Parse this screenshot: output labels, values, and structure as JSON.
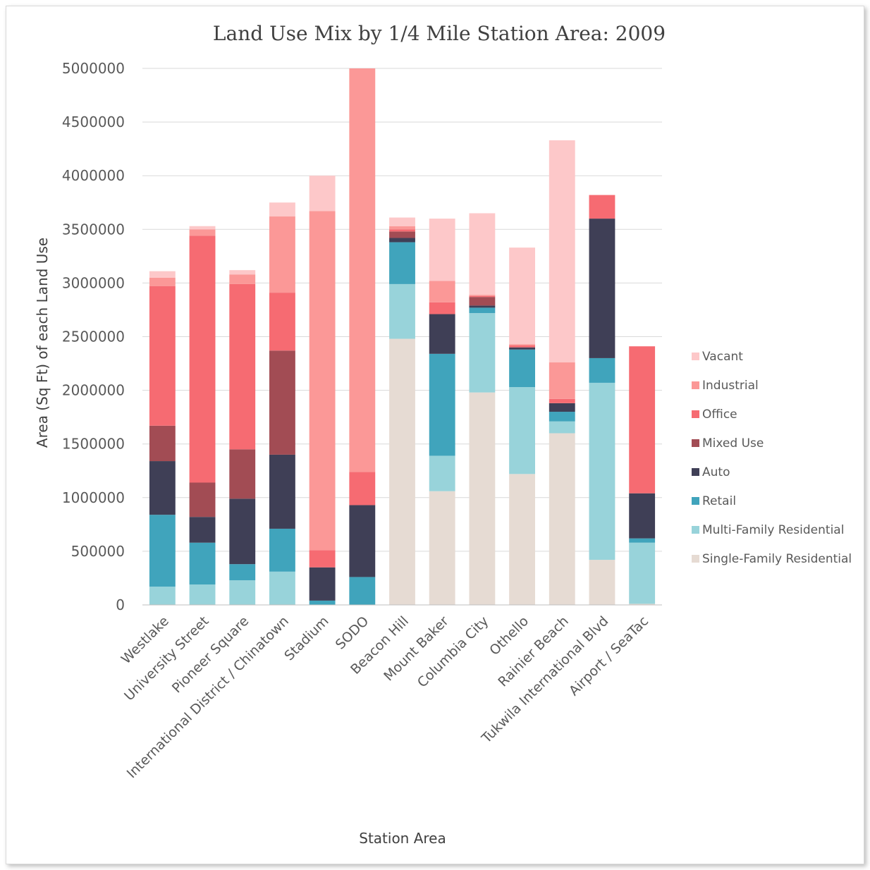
{
  "chart_data": {
    "type": "bar",
    "stacked": true,
    "title": "Land Use Mix by 1/4 Mile Station Area: 2009",
    "xlabel": "Station Area",
    "ylabel": "Area (Sq Ft) of each Land Use",
    "ylim": [
      0,
      5000000
    ],
    "yticks": [
      0,
      500000,
      1000000,
      1500000,
      2000000,
      2500000,
      3000000,
      3500000,
      4000000,
      4500000,
      5000000
    ],
    "ytick_labels": [
      "0",
      "500000",
      "1000000",
      "1500000",
      "2000000",
      "2500000",
      "3000000",
      "3500000",
      "4000000",
      "4500000",
      "5000000"
    ],
    "grid": true,
    "legend_position": "right",
    "categories": [
      "Westlake",
      "University Street",
      "Pioneer Square",
      "International District / Chinatown",
      "Stadium",
      "SODO",
      "Beacon Hill",
      "Mount Baker",
      "Columbia City",
      "Othello",
      "Rainier Beach",
      "Tukwila International Blvd",
      "Airport / SeaTac"
    ],
    "series": [
      {
        "name": "Single-Family Residential",
        "color": "#e6dbd3",
        "values": [
          0,
          0,
          0,
          0,
          0,
          0,
          2480000,
          1060000,
          1980000,
          1220000,
          1600000,
          420000,
          10000
        ]
      },
      {
        "name": "Multi-Family Residential",
        "color": "#98d3da",
        "values": [
          170000,
          190000,
          230000,
          310000,
          0,
          0,
          510000,
          330000,
          740000,
          810000,
          110000,
          1650000,
          570000
        ]
      },
      {
        "name": "Retail",
        "color": "#40a4bc",
        "values": [
          670000,
          390000,
          150000,
          400000,
          40000,
          260000,
          390000,
          950000,
          50000,
          350000,
          90000,
          230000,
          40000
        ]
      },
      {
        "name": "Auto",
        "color": "#3f3f56",
        "values": [
          500000,
          240000,
          610000,
          690000,
          310000,
          670000,
          40000,
          370000,
          20000,
          20000,
          80000,
          1300000,
          420000
        ]
      },
      {
        "name": "Mixed Use",
        "color": "#a24c54",
        "values": [
          330000,
          320000,
          460000,
          970000,
          0,
          0,
          60000,
          0,
          80000,
          0,
          0,
          0,
          0
        ]
      },
      {
        "name": "Office",
        "color": "#f66b72",
        "values": [
          1300000,
          2300000,
          1540000,
          540000,
          160000,
          310000,
          20000,
          110000,
          10000,
          20000,
          40000,
          220000,
          1370000
        ]
      },
      {
        "name": "Industrial",
        "color": "#fb9897",
        "values": [
          80000,
          60000,
          90000,
          710000,
          3160000,
          3760000,
          30000,
          200000,
          10000,
          10000,
          340000,
          0,
          0
        ]
      },
      {
        "name": "Vacant",
        "color": "#fdc8c9",
        "values": [
          60000,
          30000,
          40000,
          130000,
          330000,
          0,
          80000,
          580000,
          760000,
          900000,
          2070000,
          0,
          0
        ]
      }
    ]
  }
}
